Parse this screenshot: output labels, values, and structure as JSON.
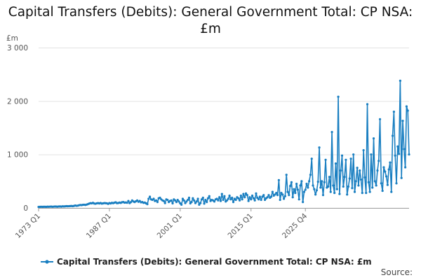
{
  "chart_data": {
    "type": "line",
    "title": "Capital Transfers (Debits): General Government Total: CP NSA: £m",
    "unit_label": "£m",
    "x_tick_labels": [
      "1973 Q1",
      "1987 Q1",
      "2001 Q1",
      "2015 Q1",
      "2025 Q4"
    ],
    "y_ticks": [
      0,
      1000,
      2000,
      3000
    ],
    "y_tick_labels": [
      "0",
      "1 000",
      "2 000",
      "3 000"
    ],
    "ylim": [
      0,
      3000
    ],
    "grid": true,
    "legend_position": "bottom",
    "source_label": "Source:",
    "x_start": {
      "year": 1973,
      "quarter": 1
    },
    "series": [
      {
        "name": "Capital Transfers (Debits): General Government Total: CP NSA: £m",
        "color": "#1a7fc1",
        "values": [
          18,
          20,
          22,
          20,
          21,
          22,
          20,
          23,
          22,
          24,
          25,
          22,
          24,
          26,
          25,
          23,
          27,
          28,
          25,
          30,
          28,
          30,
          33,
          31,
          32,
          34,
          36,
          33,
          38,
          45,
          40,
          42,
          50,
          55,
          52,
          58,
          60,
          56,
          62,
          70,
          80,
          88,
          85,
          95,
          82,
          78,
          86,
          90,
          84,
          92,
          80,
          85,
          90,
          88,
          86,
          75,
          90,
          84,
          95,
          88,
          98,
          105,
          88,
          92,
          100,
          94,
          106,
          110,
          98,
          102,
          96,
          130,
          90,
          108,
          140,
          120,
          110,
          125,
          140,
          115,
          130,
          105,
          110,
          95,
          100,
          85,
          70,
          170,
          210,
          160,
          150,
          170,
          130,
          140,
          110,
          180,
          190,
          160,
          140,
          130,
          90,
          160,
          150,
          110,
          130,
          140,
          85,
          160,
          140,
          110,
          150,
          120,
          85,
          60,
          170,
          140,
          90,
          120,
          150,
          190,
          85,
          110,
          180,
          140,
          90,
          120,
          170,
          60,
          90,
          160,
          190,
          80,
          150,
          110,
          180,
          220,
          130,
          150,
          140,
          120,
          160,
          170,
          140,
          200,
          130,
          260,
          150,
          220,
          120,
          140,
          170,
          230,
          160,
          190,
          110,
          170,
          150,
          200,
          180,
          140,
          230,
          160,
          260,
          200,
          270,
          240,
          130,
          200,
          160,
          230,
          180,
          140,
          270,
          190,
          160,
          210,
          150,
          210,
          240,
          150,
          180,
          200,
          240,
          190,
          210,
          300,
          230,
          250,
          280,
          240,
          520,
          150,
          280,
          250,
          170,
          220,
          620,
          300,
          240,
          410,
          480,
          200,
          350,
          280,
          450,
          340,
          160,
          420,
          500,
          110,
          300,
          340,
          450,
          380,
          500,
          620,
          920,
          420,
          350,
          250,
          330,
          490,
          1130,
          380,
          500,
          240,
          480,
          900,
          380,
          400,
          580,
          300,
          1420,
          420,
          280,
          830,
          350,
          2080,
          260,
          700,
          980,
          400,
          580,
          900,
          250,
          400,
          550,
          920,
          370,
          1000,
          300,
          500,
          750,
          420,
          700,
          530,
          280,
          1080,
          570,
          280,
          1940,
          480,
          300,
          1000,
          380,
          1300,
          500,
          420,
          700,
          880,
          1660,
          460,
          320,
          760,
          680,
          590,
          430,
          720,
          850,
          300,
          1350,
          1800,
          980,
          460,
          1150,
          1010,
          2380,
          560,
          1630,
          1100,
          760,
          1900,
          1820,
          1000
        ]
      }
    ]
  }
}
